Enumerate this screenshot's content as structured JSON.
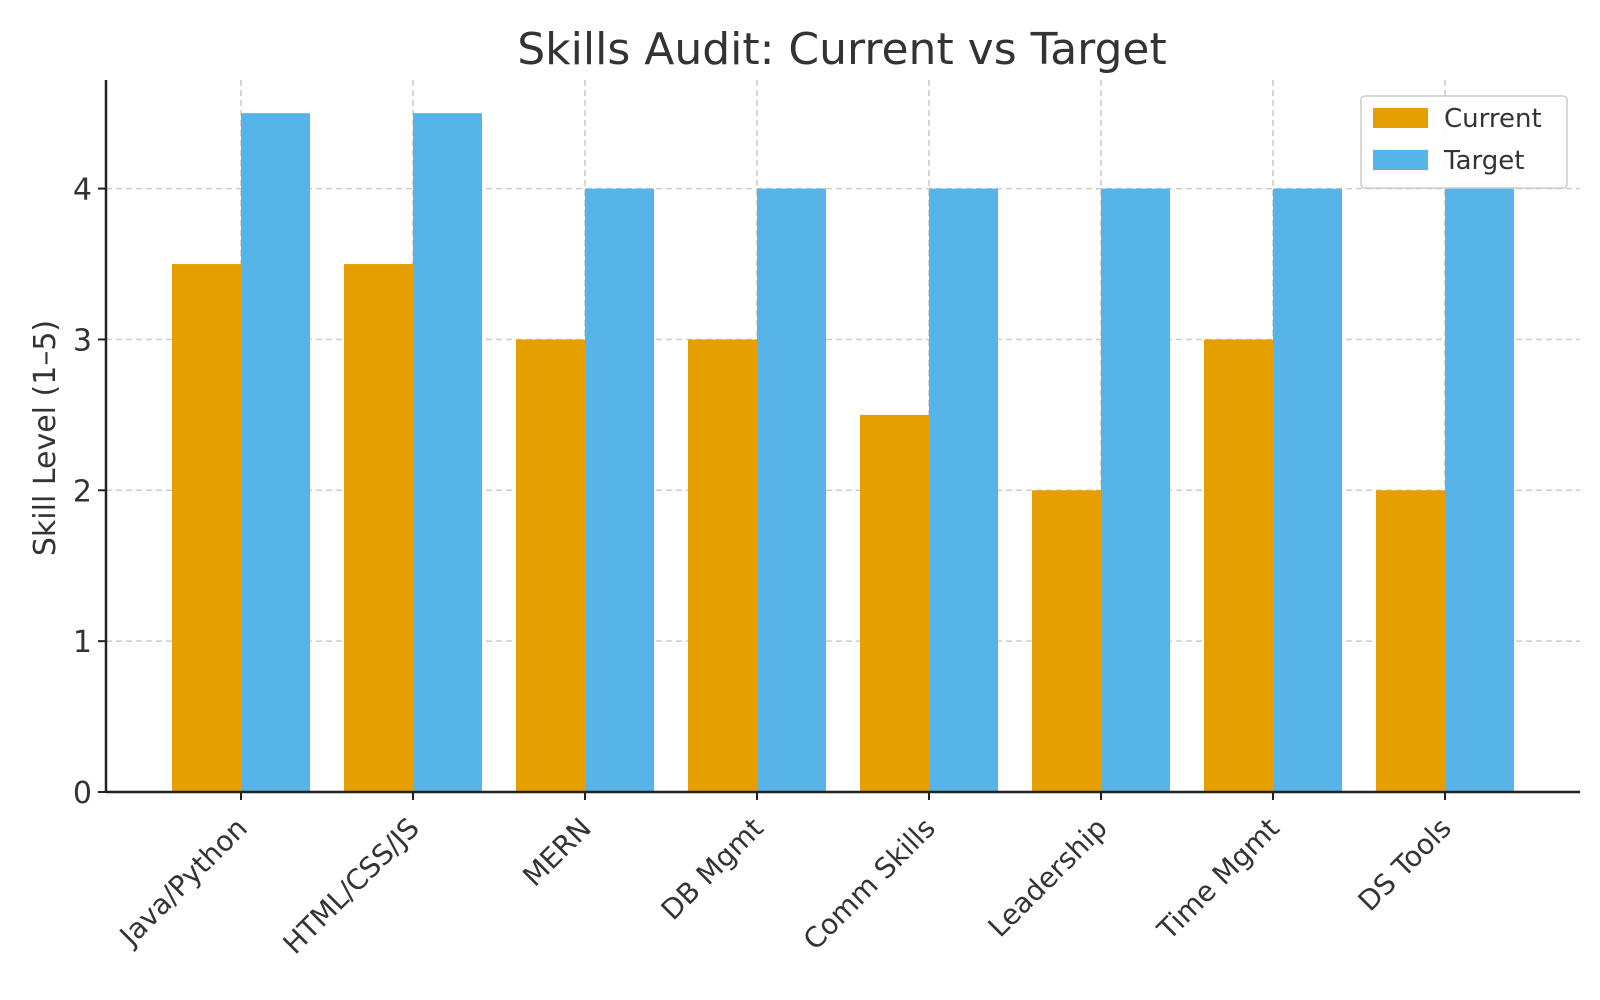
{
  "chart_data": {
    "type": "bar",
    "title": "Skills Audit: Current vs Target",
    "xlabel": "",
    "ylabel": "Skill Level (1–5)",
    "categories": [
      "Java/Python",
      "HTML/CSS/JS",
      "MERN",
      "DB Mgmt",
      "Comm Skills",
      "Leadership",
      "Time Mgmt",
      "DS Tools"
    ],
    "series": [
      {
        "name": "Current",
        "color": "#E69F00",
        "values": [
          3.5,
          3.5,
          3.0,
          3.0,
          2.5,
          2.0,
          3.0,
          2.0
        ]
      },
      {
        "name": "Target",
        "color": "#56B4E9",
        "values": [
          4.5,
          4.5,
          4.0,
          4.0,
          4.0,
          4.0,
          4.0,
          4.0
        ]
      }
    ],
    "ylim": [
      0,
      4.72
    ],
    "yticks": [
      0,
      1,
      2,
      3,
      4
    ],
    "grid": true,
    "legend_position": "top-right"
  }
}
